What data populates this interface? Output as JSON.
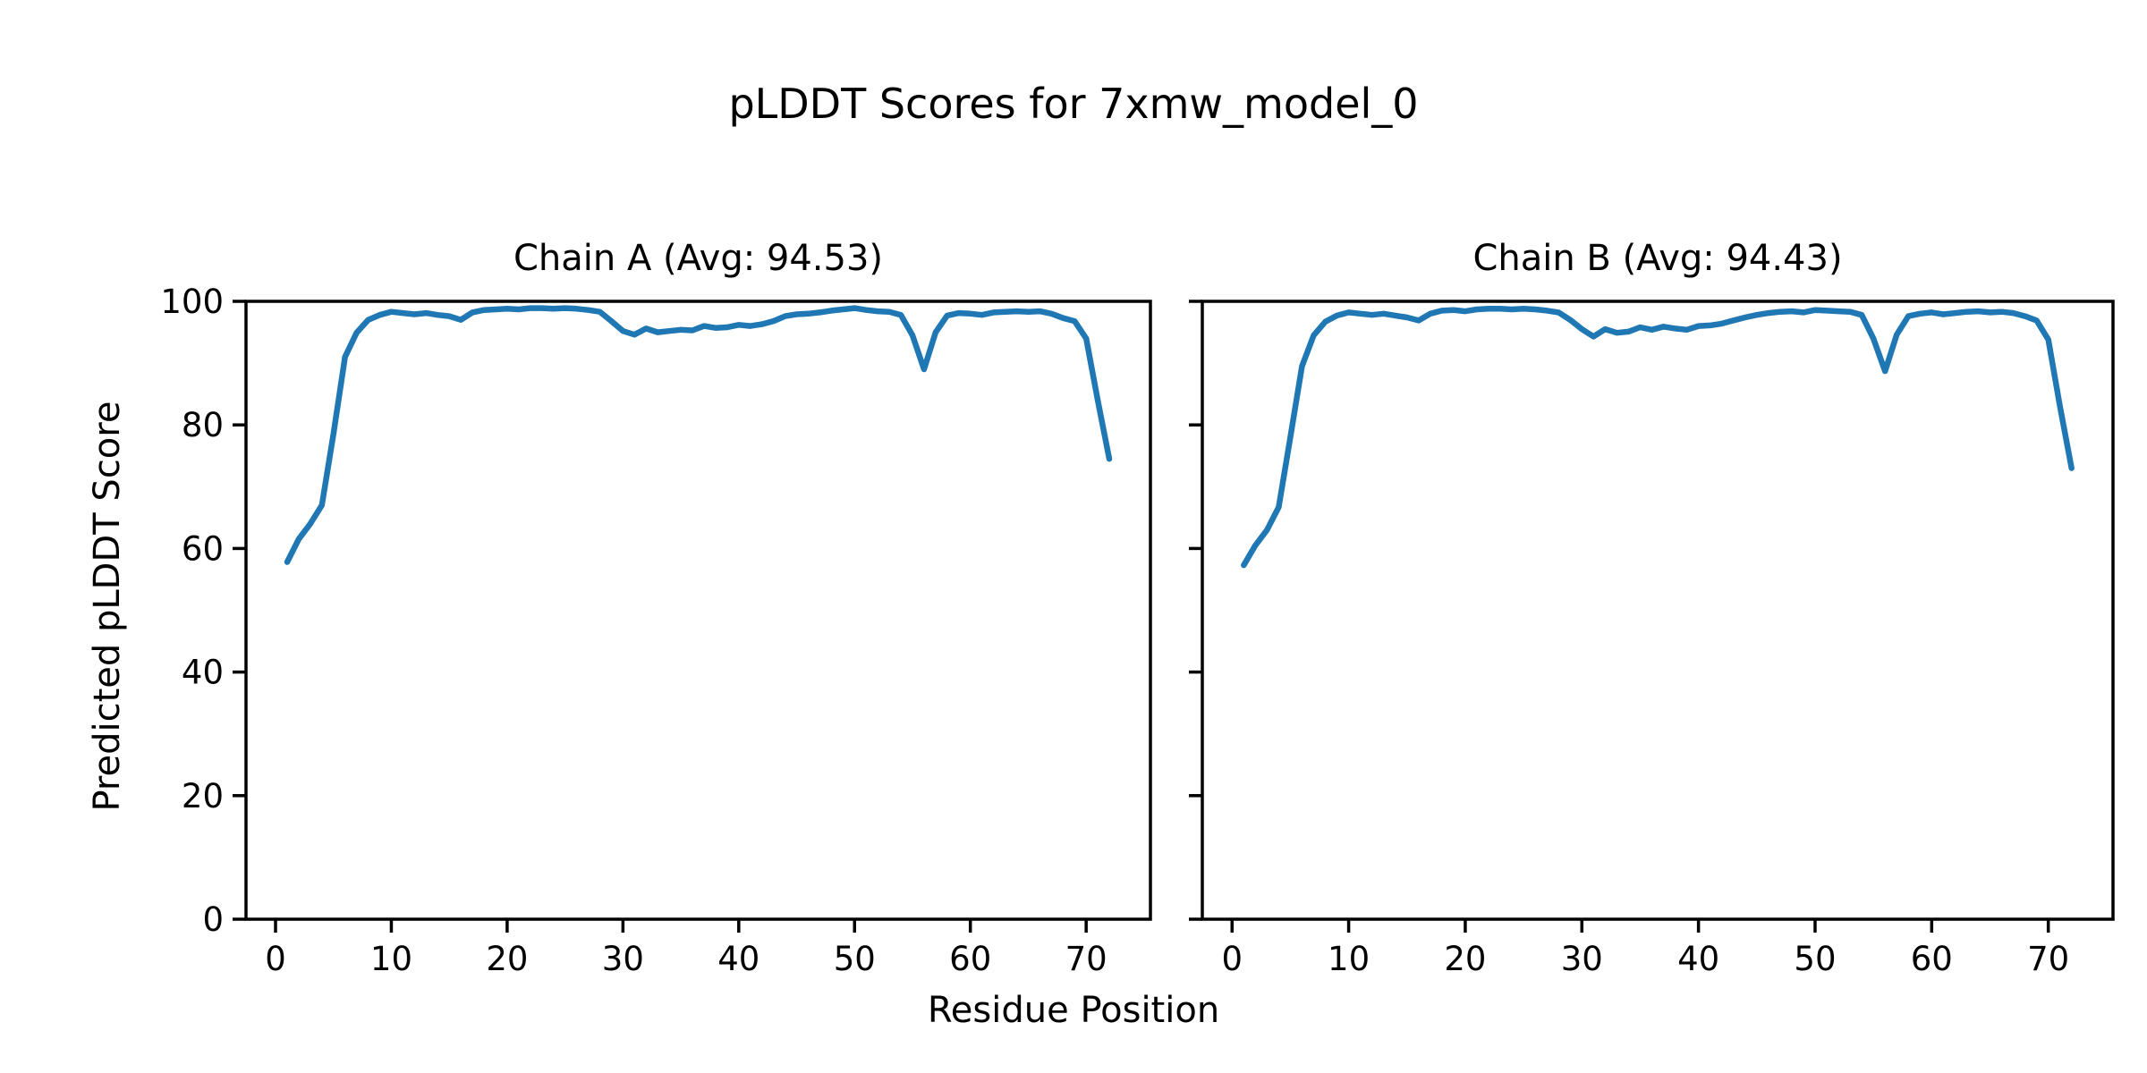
{
  "figure": {
    "suptitle": "pLDDT Scores for 7xmw_model_0",
    "xlabel": "Residue Position",
    "ylabel": "Predicted pLDDT Score",
    "background_color": "#ffffff",
    "text_color": "#000000",
    "spine_color": "#000000"
  },
  "chart_data": [
    {
      "type": "line",
      "title": "Chain A (Avg: 94.53)",
      "series_name": "Chain A",
      "avg_plddt": 94.53,
      "line_color": "#1f77b4",
      "xlabel": "Residue Position",
      "ylabel": "Predicted pLDDT Score",
      "xlim": [
        -2.55,
        75.55
      ],
      "ylim": [
        0,
        100
      ],
      "xticks": [
        0,
        10,
        20,
        30,
        40,
        50,
        60,
        70
      ],
      "yticks": [
        0,
        20,
        40,
        60,
        80,
        100
      ],
      "grid": false,
      "x": [
        1,
        2,
        3,
        4,
        5,
        6,
        7,
        8,
        9,
        10,
        11,
        12,
        13,
        14,
        15,
        16,
        17,
        18,
        19,
        20,
        21,
        22,
        23,
        24,
        25,
        26,
        27,
        28,
        29,
        30,
        31,
        32,
        33,
        34,
        35,
        36,
        37,
        38,
        39,
        40,
        41,
        42,
        43,
        44,
        45,
        46,
        47,
        48,
        49,
        50,
        51,
        52,
        53,
        54,
        55,
        56,
        57,
        58,
        59,
        60,
        61,
        62,
        63,
        64,
        65,
        66,
        67,
        68,
        69,
        70,
        71,
        72
      ],
      "y": [
        57.8,
        61.5,
        64.0,
        67.0,
        78.5,
        91.0,
        94.9,
        97.0,
        97.8,
        98.3,
        98.1,
        97.9,
        98.1,
        97.8,
        97.6,
        97.0,
        98.2,
        98.6,
        98.7,
        98.8,
        98.7,
        98.9,
        98.9,
        98.8,
        98.9,
        98.8,
        98.6,
        98.3,
        96.8,
        95.2,
        94.6,
        95.6,
        95.0,
        95.2,
        95.4,
        95.3,
        96.0,
        95.7,
        95.8,
        96.2,
        96.0,
        96.3,
        96.8,
        97.6,
        97.9,
        98.0,
        98.2,
        98.5,
        98.7,
        98.9,
        98.6,
        98.4,
        98.3,
        97.8,
        94.5,
        89.0,
        95.0,
        97.7,
        98.1,
        98.0,
        97.8,
        98.2,
        98.3,
        98.4,
        98.3,
        98.4,
        98.0,
        97.3,
        96.8,
        94.0,
        84.0,
        74.5
      ]
    },
    {
      "type": "line",
      "title": "Chain B (Avg: 94.43)",
      "series_name": "Chain B",
      "avg_plddt": 94.43,
      "line_color": "#1f77b4",
      "xlabel": "Residue Position",
      "ylabel": "Predicted pLDDT Score",
      "xlim": [
        -2.55,
        75.55
      ],
      "ylim": [
        0,
        100
      ],
      "xticks": [
        0,
        10,
        20,
        30,
        40,
        50,
        60,
        70
      ],
      "yticks": [
        0,
        20,
        40,
        60,
        80,
        100
      ],
      "grid": false,
      "x": [
        1,
        2,
        3,
        4,
        5,
        6,
        7,
        8,
        9,
        10,
        11,
        12,
        13,
        14,
        15,
        16,
        17,
        18,
        19,
        20,
        21,
        22,
        23,
        24,
        25,
        26,
        27,
        28,
        29,
        30,
        31,
        32,
        33,
        34,
        35,
        36,
        37,
        38,
        39,
        40,
        41,
        42,
        43,
        44,
        45,
        46,
        47,
        48,
        49,
        50,
        51,
        52,
        53,
        54,
        55,
        56,
        57,
        58,
        59,
        60,
        61,
        62,
        63,
        64,
        65,
        66,
        67,
        68,
        69,
        70,
        71,
        72
      ],
      "y": [
        57.3,
        60.5,
        63.0,
        66.7,
        78.0,
        89.5,
        94.5,
        96.7,
        97.7,
        98.2,
        98.0,
        97.8,
        98.0,
        97.7,
        97.4,
        96.9,
        98.0,
        98.5,
        98.6,
        98.4,
        98.7,
        98.8,
        98.8,
        98.7,
        98.8,
        98.7,
        98.5,
        98.2,
        97.0,
        95.5,
        94.3,
        95.5,
        94.9,
        95.1,
        95.8,
        95.4,
        95.9,
        95.6,
        95.4,
        96.0,
        96.1,
        96.4,
        96.9,
        97.4,
        97.8,
        98.1,
        98.3,
        98.4,
        98.2,
        98.6,
        98.5,
        98.4,
        98.3,
        97.8,
        94.0,
        88.7,
        94.6,
        97.6,
        98.0,
        98.2,
        97.9,
        98.1,
        98.3,
        98.4,
        98.2,
        98.3,
        98.1,
        97.6,
        96.9,
        93.8,
        83.0,
        73.0
      ]
    }
  ]
}
